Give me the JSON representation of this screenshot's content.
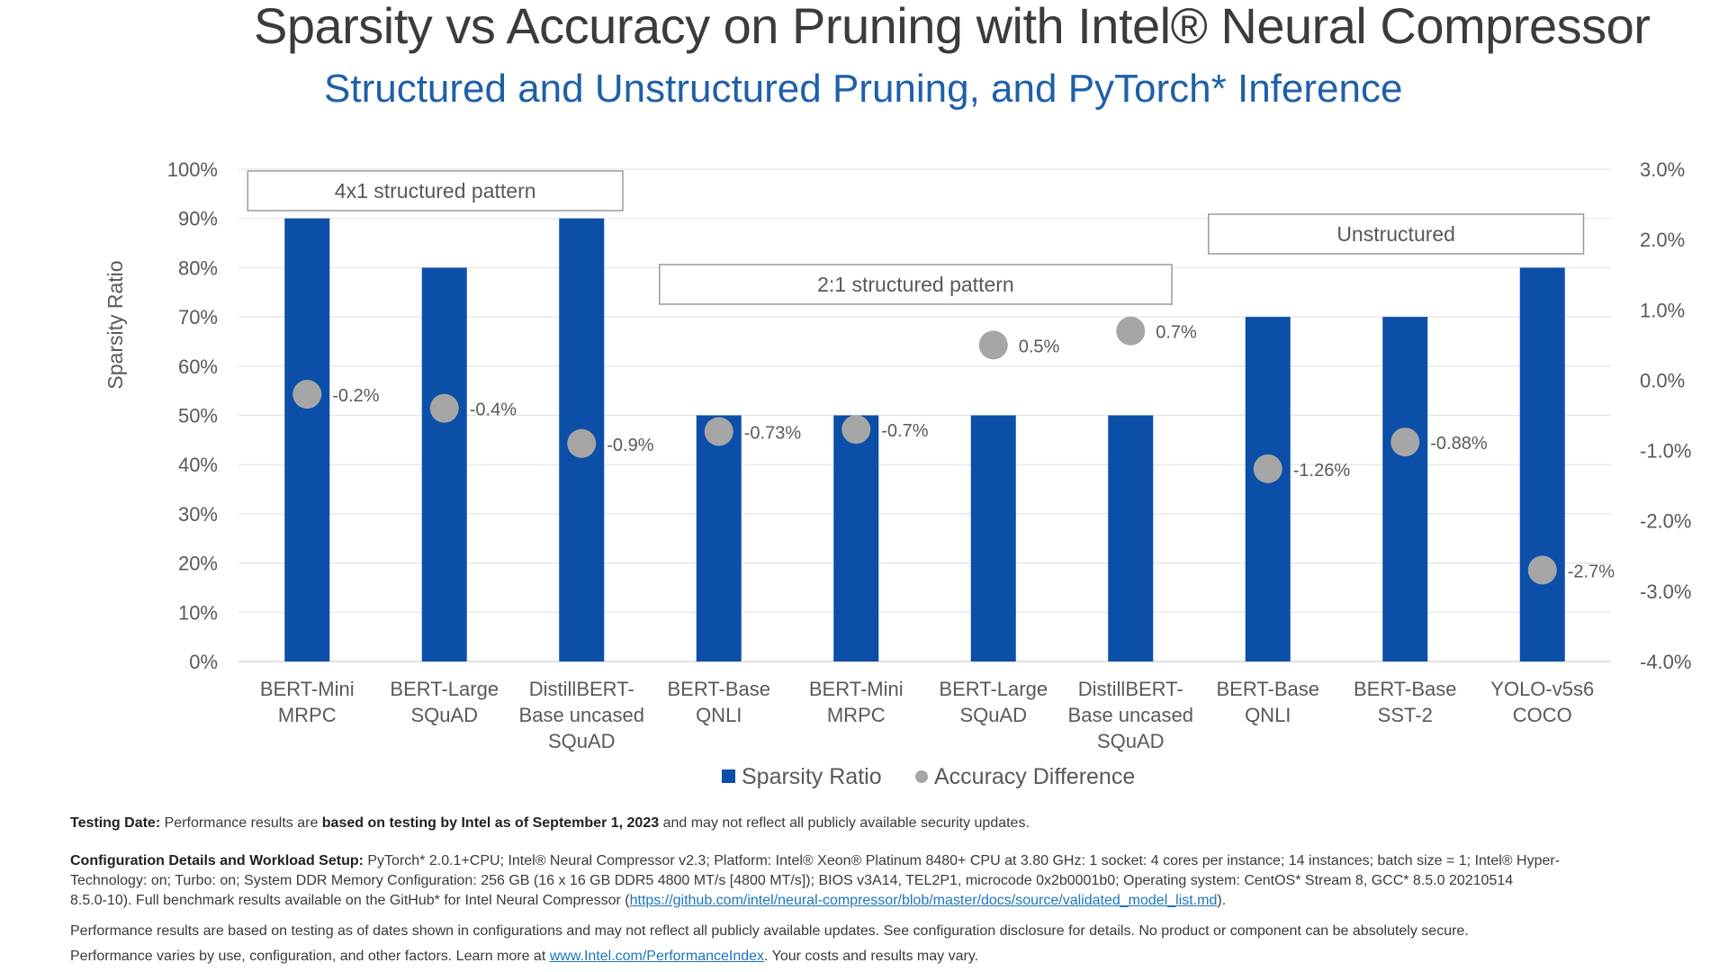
{
  "chart_data": {
    "type": "bar",
    "title": "Sparsity vs Accuracy on Pruning with Intel® Neural Compressor",
    "subtitle": "Structured and Unstructured Pruning, and PyTorch* Inference",
    "ylabel": "Sparsity Ratio",
    "ylim": [
      0,
      100
    ],
    "y2lim": [
      -4.0,
      3.0
    ],
    "y_ticks": [
      "0%",
      "10%",
      "20%",
      "30%",
      "40%",
      "50%",
      "60%",
      "70%",
      "80%",
      "90%",
      "100%"
    ],
    "y2_ticks": [
      "-4.0%",
      "-3.0%",
      "-2.0%",
      "-1.0%",
      "0.0%",
      "1.0%",
      "2.0%",
      "3.0%"
    ],
    "grid": true,
    "legend_position": "bottom",
    "categories": [
      [
        "BERT-Mini",
        "MRPC"
      ],
      [
        "BERT-Large",
        "SQuAD"
      ],
      [
        "DistillBERT-",
        "Base uncased",
        "SQuAD"
      ],
      [
        "BERT-Base",
        "QNLI"
      ],
      [
        "BERT-Mini",
        "MRPC"
      ],
      [
        "BERT-Large",
        "SQuAD"
      ],
      [
        "DistillBERT-",
        "Base uncased",
        "SQuAD"
      ],
      [
        "BERT-Base",
        "QNLI"
      ],
      [
        "BERT-Base",
        "SST-2"
      ],
      [
        "YOLO-v5s6",
        "COCO"
      ]
    ],
    "series": [
      {
        "name": "Sparsity Ratio",
        "type": "bar",
        "axis": "left",
        "color": "#0b4fa8",
        "values": [
          90,
          80,
          90,
          50,
          50,
          50,
          50,
          70,
          70,
          80
        ]
      },
      {
        "name": "Accuracy Difference",
        "type": "scatter",
        "axis": "right",
        "color": "#a6a6a6",
        "values": [
          -0.2,
          -0.4,
          -0.9,
          -0.73,
          -0.7,
          0.5,
          0.7,
          -1.26,
          -0.88,
          -2.7
        ],
        "labels": [
          "-0.2%",
          "-0.4%",
          "-0.9%",
          "-0.73%",
          "-0.7%",
          "0.5%",
          "0.7%",
          "-1.26%",
          "-0.88%",
          "-2.7%"
        ]
      }
    ],
    "annotations": [
      {
        "text": "4x1 structured pattern",
        "from": 0,
        "to": 2
      },
      {
        "text": "2:1 structured pattern",
        "from": 3,
        "to": 6
      },
      {
        "text": "Unstructured",
        "from": 7,
        "to": 9
      }
    ]
  },
  "footer": {
    "testing_label": "Testing Date:",
    "testing_text_1": " Performance results are ",
    "testing_bold": "based on testing by Intel as of September 1, 2023",
    "testing_text_2": " and may not reflect all publicly available security updates.",
    "config_label": "Configuration Details and Workload Setup:",
    "config_line1": " PyTorch* 2.0.1+CPU; Intel® Neural Compressor v2.3; Platform: Intel® Xeon® Platinum 8480+ CPU at 3.80 GHz: 1 socket: 4 cores per instance; 14 instances; batch size = 1; Intel® Hyper-",
    "config_line2": "Technology: on; Turbo: on; System DDR Memory Configuration: 256 GB (16 x 16 GB DDR5 4800 MT/s [4800 MT/s]); BIOS v3A14, TEL2P1, microcode 0x2b0001b0; Operating system: CentOS* Stream 8, GCC* 8.5.0 20210514",
    "config_line3_a": "8.5.0-10). Full benchmark results available on the GitHub* for Intel Neural Compressor (",
    "config_link": "https://github.com/intel/neural-compressor/blob/master/docs/source/validated_model_list.md",
    "config_line3_b": ").",
    "perf_text": "Performance results are based on testing as of dates shown in configurations and may not reflect all publicly available updates. See configuration disclosure for details. No product or component can be absolutely secure.",
    "perf_text2_a": "Performance varies by use, configuration, and other factors. Learn more at ",
    "perf_link": "www.Intel.com/PerformanceIndex",
    "perf_text2_b": ". Your costs and results may vary."
  }
}
